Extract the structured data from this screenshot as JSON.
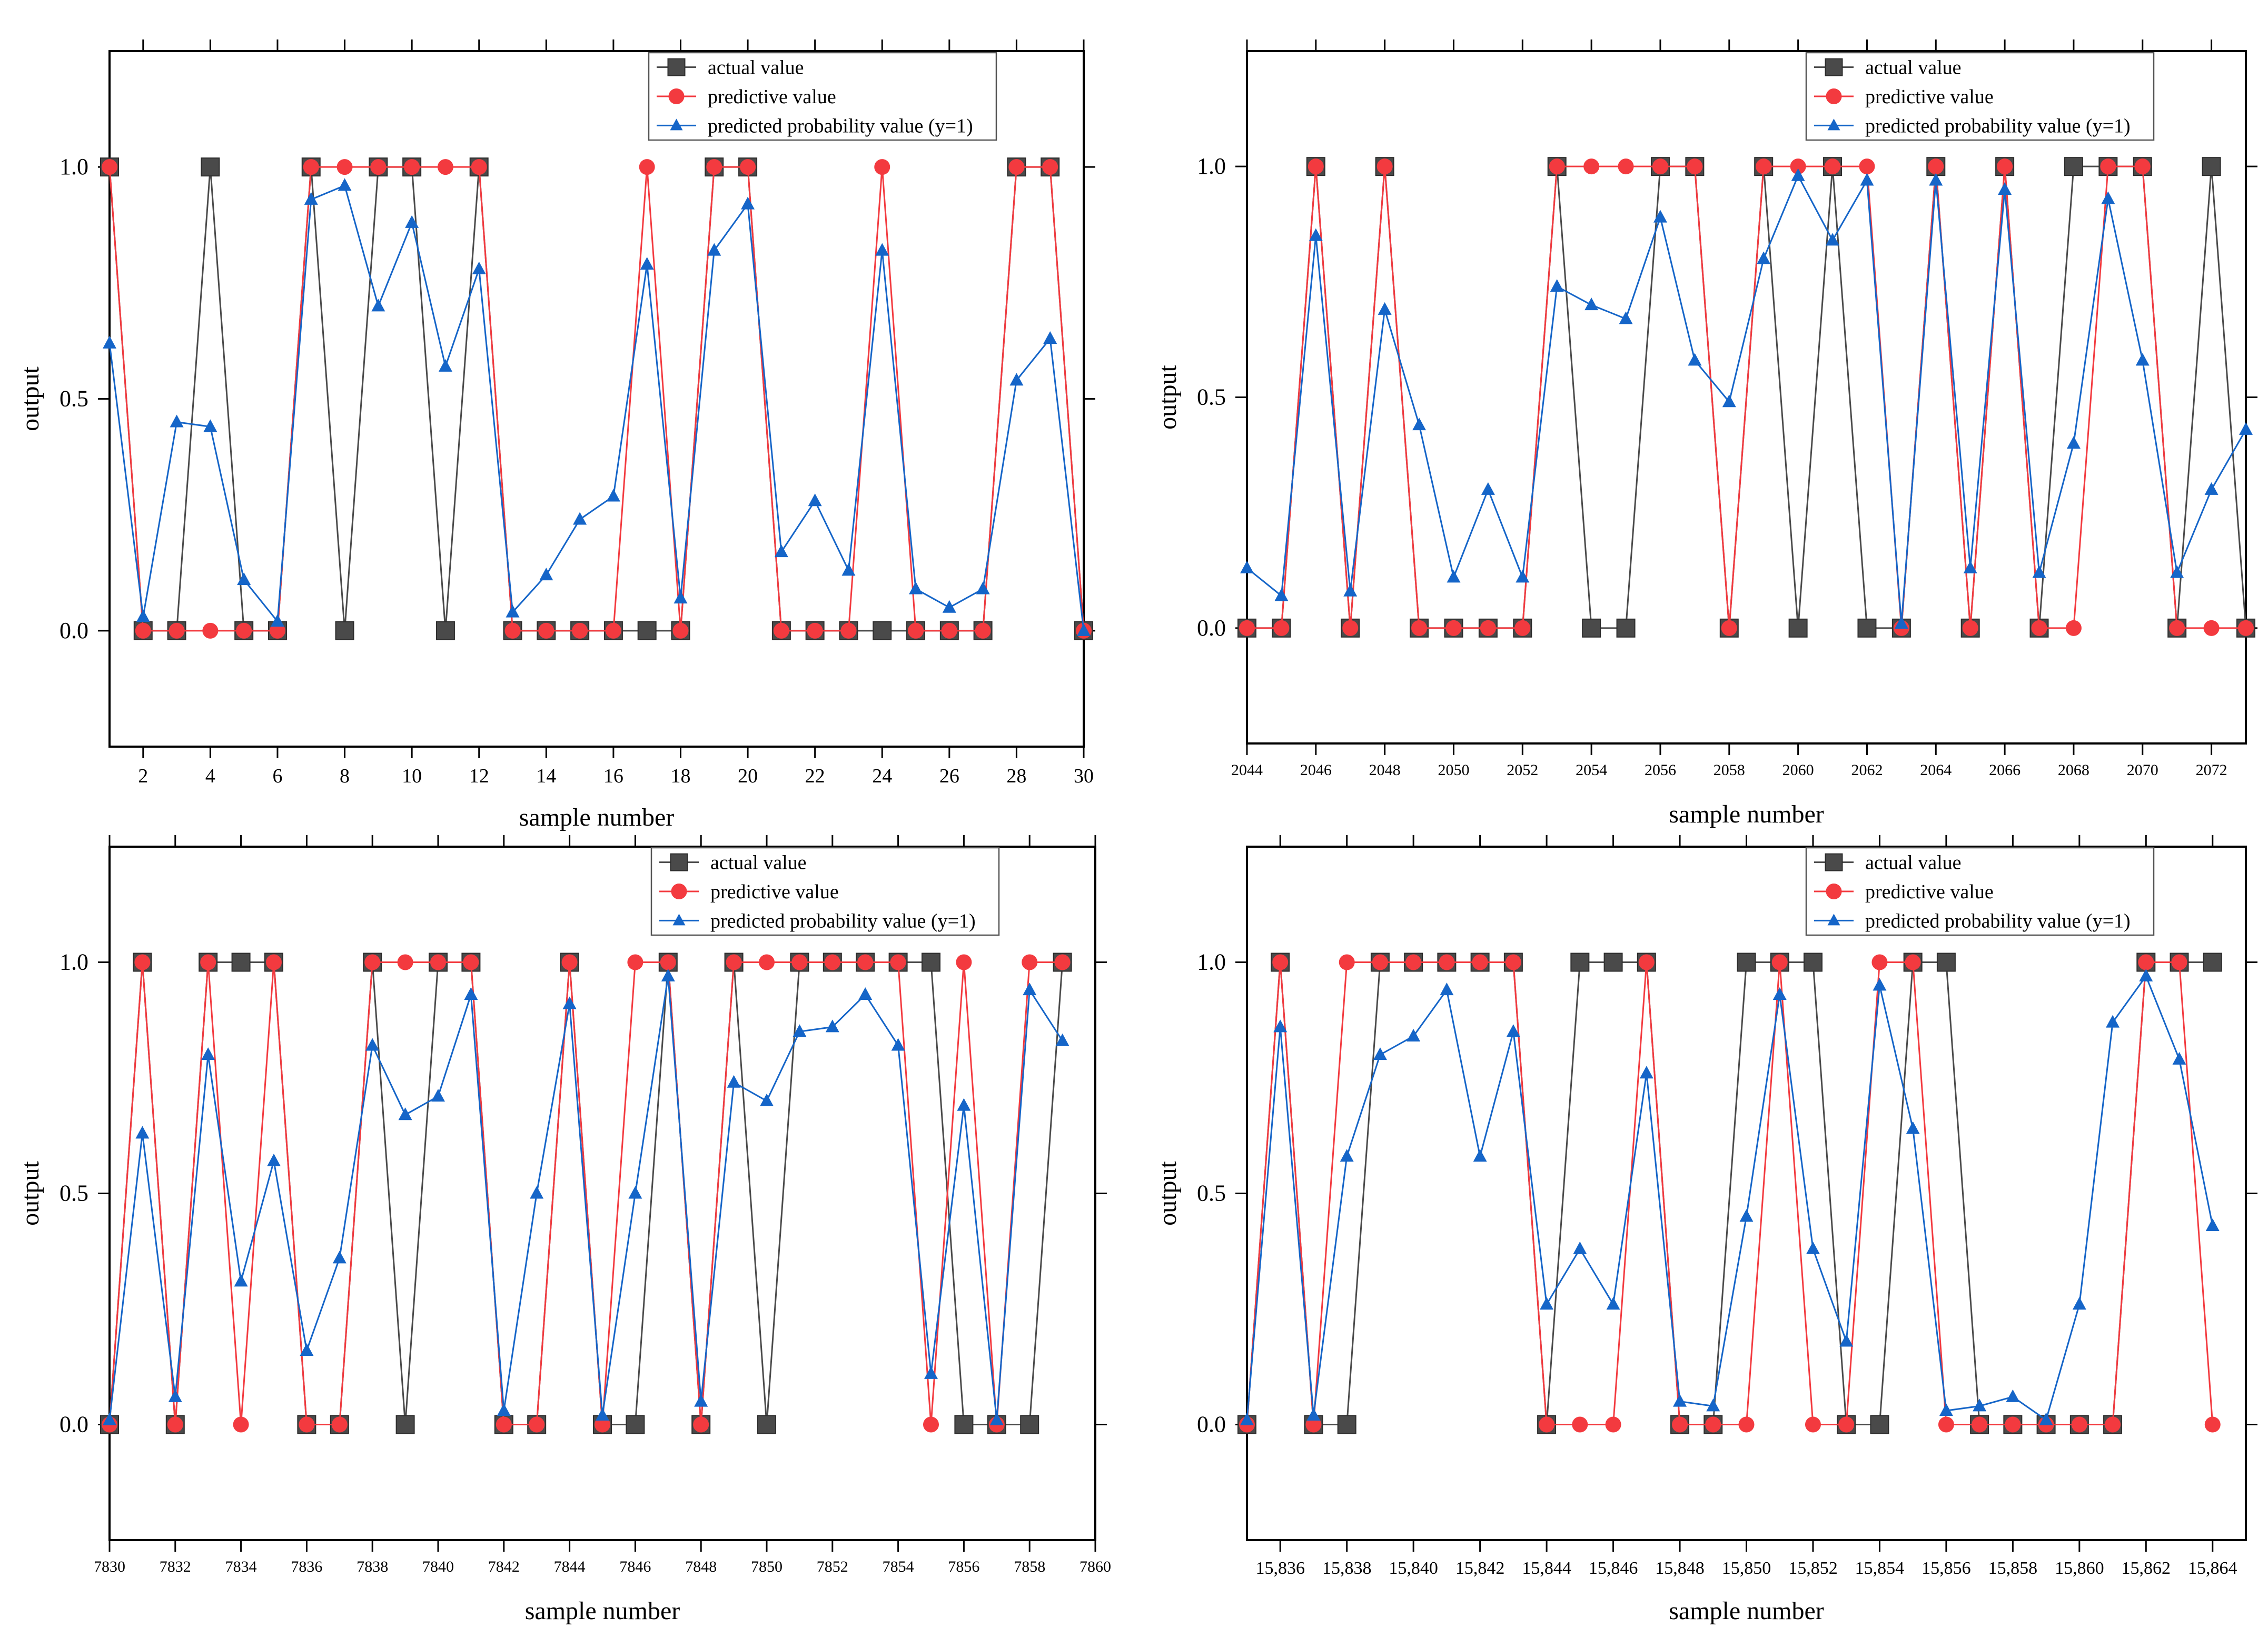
{
  "colors": {
    "actual": "#4a4a4a",
    "predictive": "#f33a3f",
    "probability": "#1565c8"
  },
  "chart_data": [
    {
      "type": "line",
      "xlabel": "sample number",
      "ylabel": "output",
      "xlim": [
        1,
        30
      ],
      "ylim": [
        -0.25,
        1.25
      ],
      "x_ticks": [
        2,
        4,
        6,
        8,
        10,
        12,
        14,
        16,
        18,
        20,
        22,
        24,
        26,
        28,
        30
      ],
      "x_tick_labels": [
        "2",
        "4",
        "6",
        "8",
        "10",
        "12",
        "14",
        "16",
        "18",
        "20",
        "22",
        "24",
        "26",
        "28",
        "30"
      ],
      "y_ticks": [
        0,
        0.5,
        1
      ],
      "y_tick_labels": [
        "0.0",
        "0.5",
        "1.0"
      ],
      "legend": [
        "actual value",
        "predictive value",
        "predicted probability value (y=1)"
      ],
      "legend_position": "top-right",
      "series": [
        {
          "name": "actual value",
          "marker": "square",
          "values": [
            1,
            0,
            0,
            1,
            0,
            0,
            1,
            0,
            1,
            1,
            0,
            1,
            0,
            0,
            0,
            0,
            0,
            0,
            1,
            1,
            0,
            0,
            0,
            0,
            0,
            0,
            0,
            1,
            1,
            0
          ]
        },
        {
          "name": "predictive value",
          "marker": "circle",
          "values": [
            1,
            0,
            0,
            0,
            0,
            0,
            1,
            1,
            1,
            1,
            1,
            1,
            0,
            0,
            0,
            0,
            1,
            0,
            1,
            1,
            0,
            0,
            0,
            1,
            0,
            0,
            0,
            1,
            1,
            0
          ]
        },
        {
          "name": "predicted probability value (y=1)",
          "marker": "triangle",
          "values": [
            0.62,
            0.03,
            0.45,
            0.44,
            0.11,
            0.02,
            0.93,
            0.96,
            0.7,
            0.88,
            0.57,
            0.78,
            0.04,
            0.12,
            0.24,
            0.29,
            0.79,
            0.07,
            0.82,
            0.92,
            0.17,
            0.28,
            0.13,
            0.82,
            0.09,
            0.05,
            0.09,
            0.54,
            0.63,
            0.0
          ]
        }
      ]
    },
    {
      "type": "line",
      "xlabel": "sample number",
      "ylabel": "output",
      "xlim": [
        2044,
        2073
      ],
      "ylim": [
        -0.25,
        1.25
      ],
      "x_ticks": [
        2044,
        2046,
        2048,
        2050,
        2052,
        2054,
        2056,
        2058,
        2060,
        2062,
        2064,
        2066,
        2068,
        2070,
        2072
      ],
      "x_tick_labels": [
        "2044",
        "2046",
        "2048",
        "2050",
        "2052",
        "2054",
        "2056",
        "2058",
        "2060",
        "2062",
        "2064",
        "2066",
        "2068",
        "2070",
        "2072"
      ],
      "y_ticks": [
        0,
        0.5,
        1
      ],
      "y_tick_labels": [
        "0.0",
        "0.5",
        "1.0"
      ],
      "legend": [
        "actual value",
        "predictive value",
        "predicted probability value (y=1)"
      ],
      "legend_position": "top-right",
      "series": [
        {
          "name": "actual value",
          "marker": "square",
          "values": [
            0,
            0,
            1,
            0,
            1,
            0,
            0,
            0,
            0,
            1,
            0,
            0,
            1,
            1,
            0,
            1,
            0,
            1,
            0,
            0,
            1,
            0,
            1,
            0,
            1,
            1,
            1,
            0,
            1,
            0
          ]
        },
        {
          "name": "predictive value",
          "marker": "circle",
          "values": [
            0,
            0,
            1,
            0,
            1,
            0,
            0,
            0,
            0,
            1,
            1,
            1,
            1,
            1,
            0,
            1,
            1,
            1,
            1,
            0,
            1,
            0,
            1,
            0,
            0,
            1,
            1,
            0,
            0,
            0
          ]
        },
        {
          "name": "predicted probability value (y=1)",
          "marker": "triangle",
          "values": [
            0.13,
            0.07,
            0.85,
            0.08,
            0.69,
            0.44,
            0.11,
            0.3,
            0.11,
            0.74,
            0.7,
            0.67,
            0.89,
            0.58,
            0.49,
            0.8,
            0.98,
            0.84,
            0.97,
            0.01,
            0.97,
            0.13,
            0.95,
            0.12,
            0.4,
            0.93,
            0.58,
            0.12,
            0.3,
            0.43
          ]
        }
      ]
    },
    {
      "type": "line",
      "xlabel": "sample number",
      "ylabel": "output",
      "xlim": [
        7830,
        7860
      ],
      "ylim": [
        -0.25,
        1.25
      ],
      "x_ticks": [
        7830,
        7832,
        7834,
        7836,
        7838,
        7840,
        7842,
        7844,
        7846,
        7848,
        7850,
        7852,
        7854,
        7856,
        7858,
        7860
      ],
      "x_tick_labels": [
        "7830",
        "7832",
        "7834",
        "7836",
        "7838",
        "7840",
        "7842",
        "7844",
        "7846",
        "7848",
        "7850",
        "7852",
        "7854",
        "7856",
        "7858",
        "7860"
      ],
      "y_ticks": [
        0,
        0.5,
        1
      ],
      "y_tick_labels": [
        "0.0",
        "0.5",
        "1.0"
      ],
      "legend": [
        "actual value",
        "predictive value",
        "predicted probability value (y=1)"
      ],
      "legend_position": "top-right",
      "series": [
        {
          "name": "actual value",
          "marker": "square",
          "values": [
            0,
            1,
            0,
            1,
            1,
            1,
            0,
            0,
            1,
            0,
            1,
            1,
            0,
            0,
            1,
            0,
            0,
            1,
            0,
            1,
            0,
            1,
            1,
            1,
            1,
            1,
            0,
            0,
            0,
            1
          ]
        },
        {
          "name": "predictive value",
          "marker": "circle",
          "values": [
            0,
            1,
            0,
            1,
            0,
            1,
            0,
            0,
            1,
            1,
            1,
            1,
            0,
            0,
            1,
            0,
            1,
            1,
            0,
            1,
            1,
            1,
            1,
            1,
            1,
            0,
            1,
            0,
            1,
            1
          ]
        },
        {
          "name": "predicted probability value (y=1)",
          "marker": "triangle",
          "values": [
            0.01,
            0.63,
            0.06,
            0.8,
            0.31,
            0.57,
            0.16,
            0.36,
            0.82,
            0.67,
            0.71,
            0.93,
            0.03,
            0.5,
            0.91,
            0.02,
            0.5,
            0.97,
            0.05,
            0.74,
            0.7,
            0.85,
            0.86,
            0.93,
            0.82,
            0.11,
            0.69,
            0.01,
            0.94,
            0.83
          ]
        }
      ]
    },
    {
      "type": "line",
      "xlabel": "sample number",
      "ylabel": "output",
      "xlim": [
        15835,
        15865
      ],
      "ylim": [
        -0.25,
        1.25
      ],
      "x_ticks": [
        15836,
        15838,
        15840,
        15842,
        15844,
        15846,
        15848,
        15850,
        15852,
        15854,
        15856,
        15858,
        15860,
        15862,
        15864
      ],
      "x_tick_labels": [
        "15,836",
        "15,838",
        "15,840",
        "15,842",
        "15,844",
        "15,846",
        "15,848",
        "15,850",
        "15,852",
        "15,854",
        "15,856",
        "15,858",
        "15,860",
        "15,862",
        "15,864"
      ],
      "y_ticks": [
        0,
        0.5,
        1
      ],
      "y_tick_labels": [
        "0.0",
        "0.5",
        "1.0"
      ],
      "legend": [
        "actual value",
        "predictive value",
        "predicted probability value (y=1)"
      ],
      "legend_position": "top-right",
      "series": [
        {
          "name": "actual value",
          "marker": "square",
          "values": [
            0,
            1,
            0,
            0,
            1,
            1,
            1,
            1,
            1,
            0,
            1,
            1,
            1,
            0,
            0,
            1,
            1,
            1,
            0,
            0,
            1,
            1,
            0,
            0,
            0,
            0,
            0,
            1,
            1,
            1
          ]
        },
        {
          "name": "predictive value",
          "marker": "circle",
          "values": [
            0,
            1,
            0,
            1,
            1,
            1,
            1,
            1,
            1,
            0,
            0,
            0,
            1,
            0,
            0,
            0,
            1,
            0,
            0,
            1,
            1,
            0,
            0,
            0,
            0,
            0,
            0,
            1,
            1,
            0
          ]
        },
        {
          "name": "predicted probability value (y=1)",
          "marker": "triangle",
          "values": [
            0.01,
            0.86,
            0.02,
            0.58,
            0.8,
            0.84,
            0.94,
            0.58,
            0.85,
            0.26,
            0.38,
            0.26,
            0.76,
            0.05,
            0.04,
            0.45,
            0.93,
            0.38,
            0.18,
            0.95,
            0.64,
            0.03,
            0.04,
            0.06,
            0.01,
            0.26,
            0.87,
            0.97,
            0.79,
            0.43
          ]
        }
      ]
    }
  ]
}
